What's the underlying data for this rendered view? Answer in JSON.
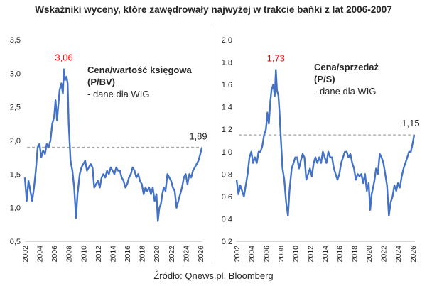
{
  "title": "Wskaźniki wyceny, które zawędrowały najwyżej w trakcie bańki z lat 2006-2007",
  "source": "Źródło: Qnews.pl, Bloomberg",
  "colors": {
    "line": "#4472c4",
    "peak": "#ff0000",
    "reference": "#a6a6a6",
    "text": "#262626",
    "divider": "#bfbfbf"
  },
  "chart_data": [
    {
      "type": "line",
      "title": "",
      "annotation": [
        "Cena/wartość księgowa",
        "(P/BV)",
        "- dane dla WIG"
      ],
      "peak_label": "3,06",
      "last_label": "1,89",
      "reference_line": 1.9,
      "ylim": [
        0.5,
        3.5
      ],
      "y_ticks": [
        "0,5",
        "1,0",
        "1,5",
        "2,0",
        "2,5",
        "3,0",
        "3,5"
      ],
      "xlim": [
        2002,
        2026.3
      ],
      "x_ticks": [
        "2002",
        "2004",
        "2006",
        "2008",
        "2010",
        "2012",
        "2014",
        "2016",
        "2018",
        "2020",
        "2022",
        "2024",
        "2026"
      ],
      "series": [
        {
          "x": [
            2002.0,
            2002.25,
            2002.5,
            2002.75,
            2003.0,
            2003.25,
            2003.5,
            2003.75,
            2004.0,
            2004.25,
            2004.5,
            2004.75,
            2005.0,
            2005.25,
            2005.5,
            2005.75,
            2006.0,
            2006.2,
            2006.4,
            2006.6,
            2006.75,
            2007.0,
            2007.2,
            2007.35,
            2007.5,
            2007.7,
            2007.85,
            2008.0,
            2008.25,
            2008.5,
            2008.75,
            2009.0,
            2009.2,
            2009.5,
            2009.75,
            2010.0,
            2010.25,
            2010.5,
            2010.75,
            2011.0,
            2011.25,
            2011.5,
            2011.75,
            2012.0,
            2012.25,
            2012.5,
            2012.75,
            2013.0,
            2013.25,
            2013.5,
            2013.75,
            2014.0,
            2014.25,
            2014.5,
            2014.75,
            2015.0,
            2015.25,
            2015.5,
            2015.75,
            2016.0,
            2016.25,
            2016.5,
            2016.75,
            2017.0,
            2017.25,
            2017.5,
            2017.75,
            2018.0,
            2018.25,
            2018.5,
            2018.75,
            2019.0,
            2019.25,
            2019.5,
            2019.75,
            2020.0,
            2020.2,
            2020.4,
            2020.6,
            2020.8,
            2021.0,
            2021.25,
            2021.5,
            2021.75,
            2022.0,
            2022.25,
            2022.5,
            2022.75,
            2023.0,
            2023.25,
            2023.5,
            2023.75,
            2024.0,
            2024.25,
            2024.5,
            2024.75,
            2025.0,
            2025.25,
            2025.5,
            2025.75,
            2026.0,
            2026.2
          ],
          "values": [
            1.45,
            1.1,
            1.4,
            1.25,
            1.1,
            1.3,
            1.55,
            1.9,
            1.95,
            1.75,
            1.85,
            1.8,
            1.95,
            1.9,
            2.0,
            2.25,
            2.35,
            2.6,
            2.3,
            2.55,
            2.75,
            2.85,
            2.7,
            3.06,
            2.9,
            2.95,
            2.85,
            2.25,
            1.7,
            1.55,
            1.3,
            0.85,
            1.2,
            1.5,
            1.6,
            1.65,
            1.7,
            1.55,
            1.6,
            1.65,
            1.6,
            1.3,
            1.35,
            1.4,
            1.3,
            1.45,
            1.5,
            1.45,
            1.55,
            1.5,
            1.6,
            1.55,
            1.5,
            1.6,
            1.55,
            1.55,
            1.45,
            1.4,
            1.3,
            1.35,
            1.45,
            1.5,
            1.6,
            1.55,
            1.45,
            1.5,
            1.4,
            1.35,
            1.2,
            1.3,
            1.25,
            1.3,
            1.2,
            1.3,
            1.1,
            1.2,
            0.8,
            1.0,
            1.05,
            1.2,
            1.3,
            1.25,
            1.5,
            1.45,
            1.4,
            1.3,
            1.25,
            1.0,
            1.1,
            1.2,
            1.3,
            1.45,
            1.5,
            1.35,
            1.5,
            1.45,
            1.55,
            1.6,
            1.65,
            1.7,
            1.8,
            1.89
          ]
        }
      ]
    },
    {
      "type": "line",
      "title": "",
      "annotation": [
        "Cena/sprzedaż",
        "(P/S)",
        "- dane dla WIG"
      ],
      "peak_label": "1,73",
      "last_label": "1,15",
      "reference_line": 1.15,
      "ylim": [
        0.2,
        2.0
      ],
      "y_ticks": [
        "0,2",
        "0,4",
        "0,6",
        "0,8",
        "1,0",
        "1,2",
        "1,4",
        "1,6",
        "1,8",
        "2,0"
      ],
      "xlim": [
        2002,
        2026.3
      ],
      "x_ticks": [
        "2002",
        "2004",
        "2006",
        "2008",
        "2010",
        "2012",
        "2014",
        "2016",
        "2018",
        "2020",
        "2022",
        "2024",
        "2026"
      ],
      "series": [
        {
          "x": [
            2002.0,
            2002.25,
            2002.5,
            2002.75,
            2003.0,
            2003.25,
            2003.5,
            2003.75,
            2004.0,
            2004.25,
            2004.5,
            2004.75,
            2005.0,
            2005.25,
            2005.5,
            2005.75,
            2006.0,
            2006.2,
            2006.4,
            2006.6,
            2006.75,
            2007.0,
            2007.2,
            2007.35,
            2007.5,
            2007.7,
            2007.85,
            2008.0,
            2008.25,
            2008.5,
            2008.75,
            2009.0,
            2009.2,
            2009.5,
            2009.75,
            2010.0,
            2010.25,
            2010.5,
            2010.75,
            2011.0,
            2011.25,
            2011.5,
            2011.75,
            2012.0,
            2012.25,
            2012.5,
            2012.75,
            2013.0,
            2013.25,
            2013.5,
            2013.75,
            2014.0,
            2014.25,
            2014.5,
            2014.75,
            2015.0,
            2015.25,
            2015.5,
            2015.75,
            2016.0,
            2016.25,
            2016.5,
            2016.75,
            2017.0,
            2017.25,
            2017.5,
            2017.75,
            2018.0,
            2018.25,
            2018.5,
            2018.75,
            2019.0,
            2019.25,
            2019.5,
            2019.75,
            2020.0,
            2020.2,
            2020.4,
            2020.6,
            2020.8,
            2021.0,
            2021.25,
            2021.5,
            2021.75,
            2022.0,
            2022.25,
            2022.5,
            2022.75,
            2023.0,
            2023.25,
            2023.5,
            2023.75,
            2024.0,
            2024.25,
            2024.5,
            2024.75,
            2025.0,
            2025.25,
            2025.5,
            2025.75,
            2026.0,
            2026.2
          ],
          "values": [
            0.75,
            0.62,
            0.7,
            0.65,
            0.6,
            0.7,
            0.8,
            0.95,
            1.0,
            0.9,
            0.95,
            0.9,
            1.0,
            1.0,
            1.05,
            1.15,
            1.2,
            1.35,
            1.25,
            1.45,
            1.55,
            1.6,
            1.5,
            1.73,
            1.55,
            1.5,
            1.35,
            1.15,
            0.85,
            0.75,
            0.55,
            0.43,
            0.65,
            0.85,
            0.9,
            0.95,
            0.95,
            0.85,
            0.92,
            0.98,
            0.95,
            0.75,
            0.8,
            0.85,
            0.78,
            0.9,
            0.95,
            0.9,
            0.95,
            0.9,
            1.0,
            0.95,
            0.9,
            1.0,
            0.95,
            0.95,
            0.85,
            0.8,
            0.75,
            0.8,
            0.9,
            0.95,
            1.0,
            1.0,
            0.95,
            0.98,
            0.9,
            0.85,
            0.75,
            0.8,
            0.78,
            0.8,
            0.72,
            0.8,
            0.65,
            0.72,
            0.48,
            0.62,
            0.68,
            0.75,
            0.85,
            0.8,
            0.98,
            0.95,
            0.9,
            0.8,
            0.7,
            0.43,
            0.55,
            0.6,
            0.7,
            0.65,
            0.72,
            0.68,
            0.78,
            0.85,
            0.9,
            0.95,
            1.0,
            1.0,
            1.08,
            1.15
          ]
        }
      ]
    }
  ]
}
